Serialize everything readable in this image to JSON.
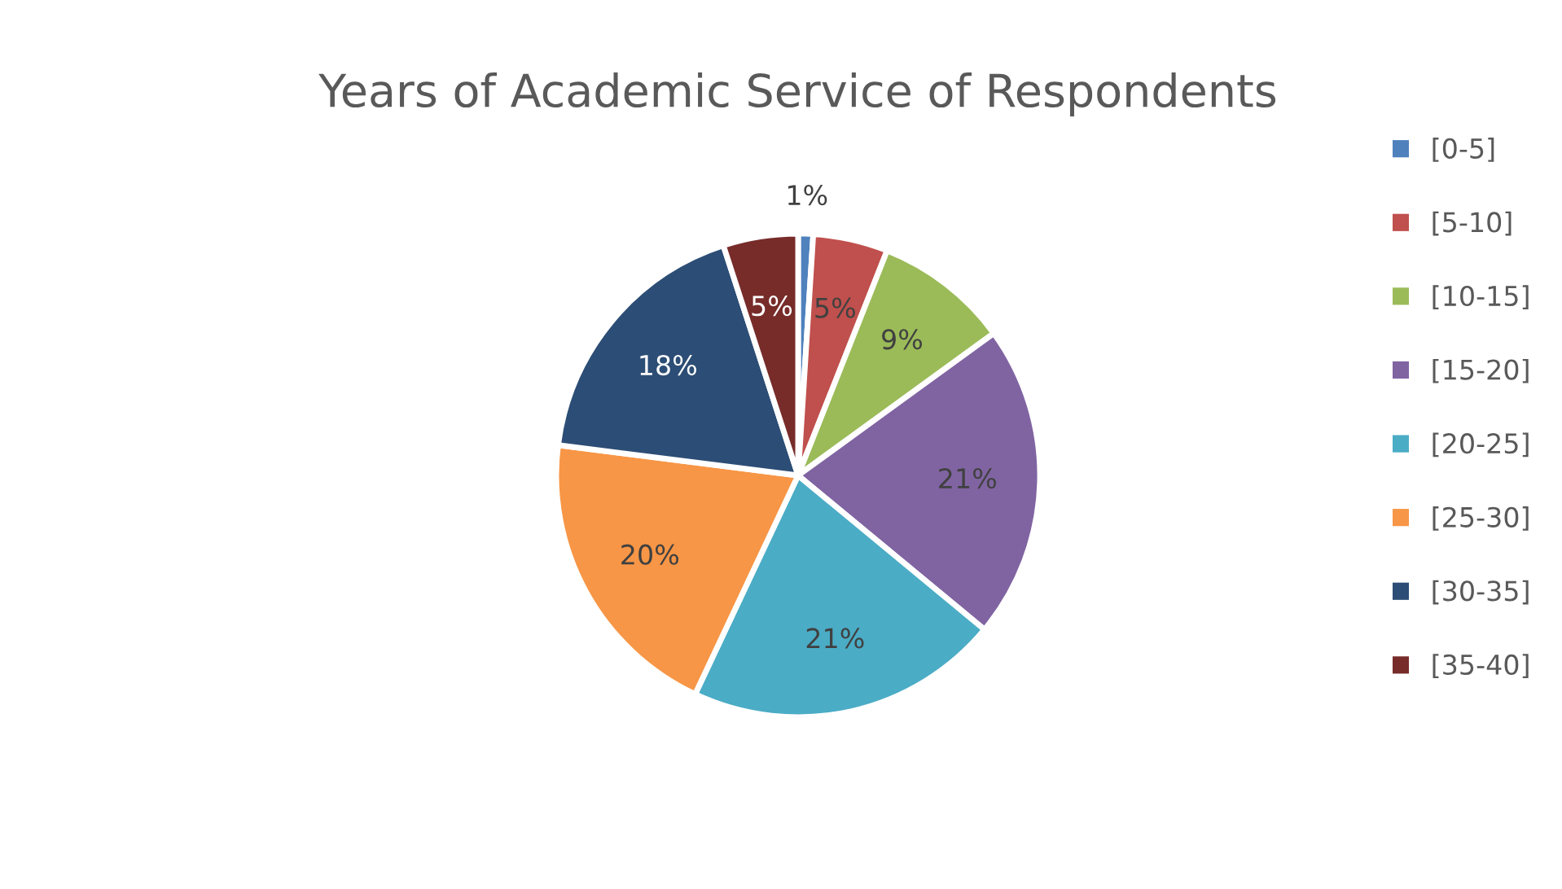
{
  "chart_data": {
    "type": "pie",
    "title": "Years of Academic Service of Respondents",
    "categories": [
      "[0-5]",
      "[5-10]",
      "[10-15]",
      "[15-20]",
      "[20-25]",
      "[25-30]",
      "[30-35]",
      "[35-40]"
    ],
    "values": [
      1,
      5,
      9,
      21,
      21,
      20,
      18,
      5
    ],
    "value_labels": [
      "1%",
      "5%",
      "9%",
      "21%",
      "21%",
      "20%",
      "18%",
      "5%"
    ],
    "colors": [
      "#4f81bd",
      "#c0504d",
      "#9bbb59",
      "#8064a2",
      "#4bacc6",
      "#f79646",
      "#2c4d75",
      "#772c2a"
    ],
    "legend": "right"
  }
}
